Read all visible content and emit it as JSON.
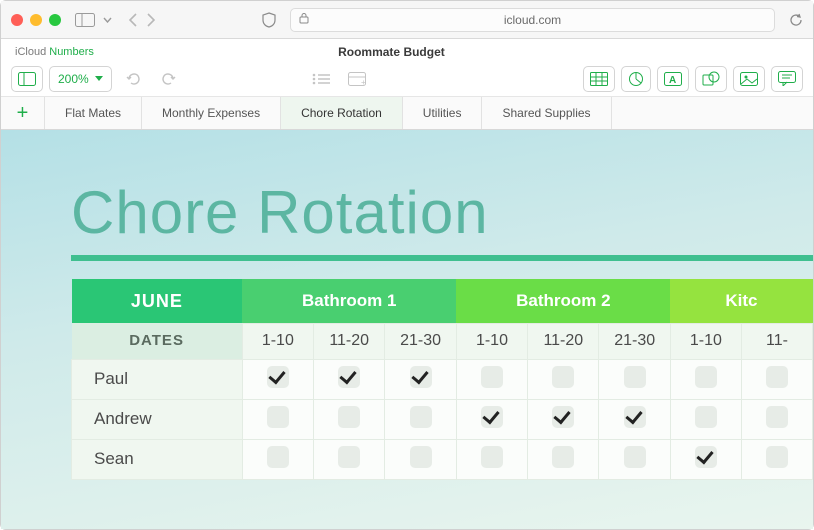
{
  "browser": {
    "url_host": "icloud.com",
    "traffic_colors": [
      "#ff5f57",
      "#febc2e",
      "#28c840"
    ]
  },
  "app": {
    "brand_a": "iCloud ",
    "brand_b": "Numbers",
    "doc_title": "Roommate Budget",
    "zoom_label": "200%"
  },
  "tabs": [
    {
      "label": "Flat Mates",
      "active": false
    },
    {
      "label": "Monthly Expenses",
      "active": false
    },
    {
      "label": "Chore Rotation",
      "active": true
    },
    {
      "label": "Utilities",
      "active": false
    },
    {
      "label": "Shared Supplies",
      "active": false
    }
  ],
  "page": {
    "title": "Chore Rotation",
    "title_color": "#5cb6a2",
    "rule_color": "#3fbf8f"
  },
  "table": {
    "month_label": "JUNE",
    "dates_label": "DATES",
    "groups": [
      {
        "label": "Bathroom 1",
        "bg": "#49cf70",
        "subs": [
          "1-10",
          "11-20",
          "21-30"
        ]
      },
      {
        "label": "Bathroom 2",
        "bg": "#6add47",
        "subs": [
          "1-10",
          "11-20",
          "21-30"
        ]
      },
      {
        "label": "Kitc",
        "bg": "#95e33f",
        "subs": [
          "1-10",
          "11-"
        ]
      }
    ],
    "rows": [
      {
        "name": "Paul",
        "checks": [
          true,
          true,
          true,
          false,
          false,
          false,
          false,
          false
        ]
      },
      {
        "name": "Andrew",
        "checks": [
          false,
          false,
          false,
          true,
          true,
          true,
          false,
          false
        ]
      },
      {
        "name": "Sean",
        "checks": [
          false,
          false,
          false,
          false,
          false,
          false,
          true,
          false
        ]
      }
    ],
    "colors": {
      "month_bg": "#2ac675",
      "dates_bg": "#dbeee2",
      "cell_bg": "#fbfdfb",
      "name_bg": "#f0f7f0"
    }
  }
}
